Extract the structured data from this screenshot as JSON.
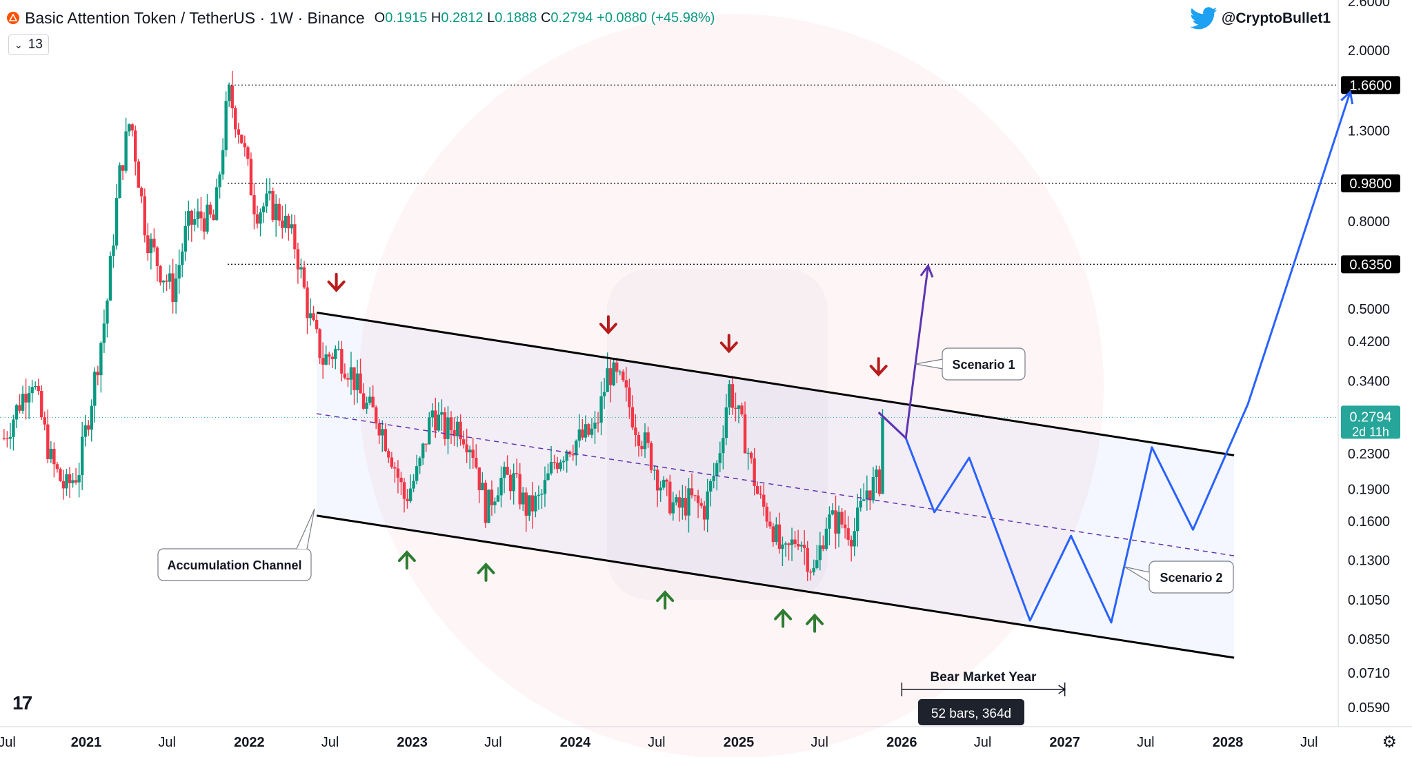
{
  "header": {
    "symbol": "Basic Attention Token / TetherUS · 1W · Binance",
    "ohlc": {
      "o_label": "O",
      "o": "0.1915",
      "h_label": "H",
      "h": "0.2812",
      "l_label": "L",
      "l": "0.1888",
      "c_label": "C",
      "c": "0.2794",
      "change": "+0.0880 (+45.98%)"
    },
    "indicator_count": "13"
  },
  "author": "@CryptoBullet1",
  "colors": {
    "up": "#089981",
    "down": "#f23645",
    "channel": "#000000",
    "projection": "#2962ff",
    "scenario1": "#5e35b1",
    "arrow_up": "#2e7d32",
    "arrow_down": "#b71c1c",
    "price_label": "#26a69a"
  },
  "chart_data": {
    "type": "line",
    "title": "Basic Attention Token / TetherUS · 1W · Binance",
    "y_scale": "log",
    "ylim": [
      0.05,
      2.7
    ],
    "y_ticks": [
      "2.6000",
      "2.0000",
      "1.3000",
      "0.8000",
      "0.5000",
      "0.4200",
      "0.3400",
      "0.2300",
      "0.1900",
      "0.1600",
      "0.1300",
      "0.1050",
      "0.0850",
      "0.0710",
      "0.0590"
    ],
    "y_tick_values": [
      2.6,
      2.0,
      1.3,
      0.8,
      0.5,
      0.42,
      0.34,
      0.23,
      0.19,
      0.16,
      0.13,
      0.105,
      0.085,
      0.071,
      0.059
    ],
    "x_ticks": [
      "Jul",
      "2021",
      "Jul",
      "2022",
      "Jul",
      "2023",
      "Jul",
      "2024",
      "Jul",
      "2025",
      "Jul",
      "2026",
      "Jul",
      "2027",
      "Jul",
      "2028",
      "Jul"
    ],
    "x_tick_dates": [
      "2020-07-01",
      "2021-01-01",
      "2021-07-01",
      "2022-01-01",
      "2022-07-01",
      "2023-01-01",
      "2023-07-01",
      "2024-01-01",
      "2024-07-01",
      "2025-01-01",
      "2025-07-01",
      "2026-01-01",
      "2026-07-01",
      "2027-01-01",
      "2027-07-01",
      "2028-01-01",
      "2028-07-01"
    ],
    "levels": [
      {
        "label": "1.6600",
        "value": 1.66
      },
      {
        "label": "0.9800",
        "value": 0.98
      },
      {
        "label": "0.6350",
        "value": 0.635
      }
    ],
    "current_price": {
      "label": "0.2794",
      "countdown": "2d 11h",
      "value": 0.2794
    },
    "price_series": {
      "name": "",
      "points": [
        [
          "2020-07-01",
          0.25
        ],
        [
          "2020-09-01",
          0.35
        ],
        [
          "2020-10-15",
          0.22
        ],
        [
          "2020-11-15",
          0.19
        ],
        [
          "2020-12-15",
          0.21
        ],
        [
          "2021-01-15",
          0.32
        ],
        [
          "2021-02-15",
          0.5
        ],
        [
          "2021-03-15",
          1.0
        ],
        [
          "2021-04-10",
          1.4
        ],
        [
          "2021-05-15",
          0.75
        ],
        [
          "2021-06-15",
          0.62
        ],
        [
          "2021-07-15",
          0.55
        ],
        [
          "2021-08-15",
          0.78
        ],
        [
          "2021-09-15",
          0.82
        ],
        [
          "2021-10-15",
          0.8
        ],
        [
          "2021-11-15",
          1.6
        ],
        [
          "2021-12-15",
          1.25
        ],
        [
          "2022-01-15",
          0.85
        ],
        [
          "2022-02-15",
          0.88
        ],
        [
          "2022-03-15",
          0.82
        ],
        [
          "2022-04-15",
          0.7
        ],
        [
          "2022-05-15",
          0.48
        ],
        [
          "2022-06-15",
          0.38
        ],
        [
          "2022-07-15",
          0.4
        ],
        [
          "2022-08-15",
          0.36
        ],
        [
          "2022-09-15",
          0.3
        ],
        [
          "2022-10-15",
          0.28
        ],
        [
          "2022-11-15",
          0.23
        ],
        [
          "2022-12-15",
          0.18
        ],
        [
          "2023-01-15",
          0.21
        ],
        [
          "2023-02-15",
          0.29
        ],
        [
          "2023-03-15",
          0.26
        ],
        [
          "2023-04-15",
          0.27
        ],
        [
          "2023-05-15",
          0.24
        ],
        [
          "2023-06-15",
          0.17
        ],
        [
          "2023-07-15",
          0.2
        ],
        [
          "2023-08-15",
          0.2
        ],
        [
          "2023-09-15",
          0.17
        ],
        [
          "2023-10-15",
          0.18
        ],
        [
          "2023-11-15",
          0.22
        ],
        [
          "2023-12-15",
          0.24
        ],
        [
          "2024-01-15",
          0.25
        ],
        [
          "2024-02-15",
          0.26
        ],
        [
          "2024-03-15",
          0.36
        ],
        [
          "2024-04-15",
          0.33
        ],
        [
          "2024-05-15",
          0.27
        ],
        [
          "2024-06-15",
          0.23
        ],
        [
          "2024-07-15",
          0.19
        ],
        [
          "2024-08-15",
          0.17
        ],
        [
          "2024-09-15",
          0.18
        ],
        [
          "2024-10-15",
          0.17
        ],
        [
          "2024-11-15",
          0.22
        ],
        [
          "2024-12-10",
          0.33
        ],
        [
          "2025-01-15",
          0.25
        ],
        [
          "2025-02-15",
          0.18
        ],
        [
          "2025-03-15",
          0.16
        ],
        [
          "2025-04-10",
          0.13
        ],
        [
          "2025-05-15",
          0.15
        ],
        [
          "2025-06-20",
          0.12
        ],
        [
          "2025-07-15",
          0.16
        ],
        [
          "2025-08-15",
          0.16
        ],
        [
          "2025-09-15",
          0.15
        ],
        [
          "2025-10-15",
          0.19
        ],
        [
          "2025-11-15",
          0.2
        ],
        [
          "2025-11-25",
          0.2794
        ]
      ]
    },
    "channel": {
      "upper": [
        [
          "2022-06-01",
          0.49
        ],
        [
          "2028-01-15",
          0.228
        ]
      ],
      "lower": [
        [
          "2022-06-01",
          0.165
        ],
        [
          "2028-01-15",
          0.077
        ]
      ],
      "mid": [
        [
          "2022-06-01",
          0.285
        ],
        [
          "2028-01-15",
          0.133
        ]
      ]
    },
    "scenario1_path": [
      [
        "2025-11-10",
        0.287
      ],
      [
        "2026-01-10",
        0.25
      ],
      [
        "2026-03-01",
        0.63
      ]
    ],
    "scenario2_path": [
      [
        "2025-11-10",
        0.287
      ],
      [
        "2026-01-10",
        0.25
      ],
      [
        "2026-03-15",
        0.168
      ],
      [
        "2026-06-01",
        0.225
      ],
      [
        "2026-10-15",
        0.094
      ],
      [
        "2027-01-15",
        0.148
      ],
      [
        "2027-04-15",
        0.093
      ],
      [
        "2027-07-15",
        0.238
      ],
      [
        "2027-10-15",
        0.153
      ],
      [
        "2028-02-15",
        0.3
      ],
      [
        "2028-10-01",
        1.6
      ]
    ],
    "down_arrows": [
      "2022-07-15",
      "2024-03-15",
      "2024-12-10",
      "2025-11-10"
    ],
    "up_arrows": [
      "2022-12-20",
      "2023-06-15",
      "2024-07-20",
      "2025-04-10",
      "2025-06-20"
    ],
    "labels": {
      "accumulation": "Accumulation Channel",
      "scenario1": "Scenario 1",
      "scenario2": "Scenario 2",
      "bear_year": "Bear Market Year",
      "range": "52 bars, 364d"
    },
    "bear_year_range": [
      "2026-01-01",
      "2027-01-01"
    ]
  },
  "footer": {
    "tv_logo": "17"
  }
}
